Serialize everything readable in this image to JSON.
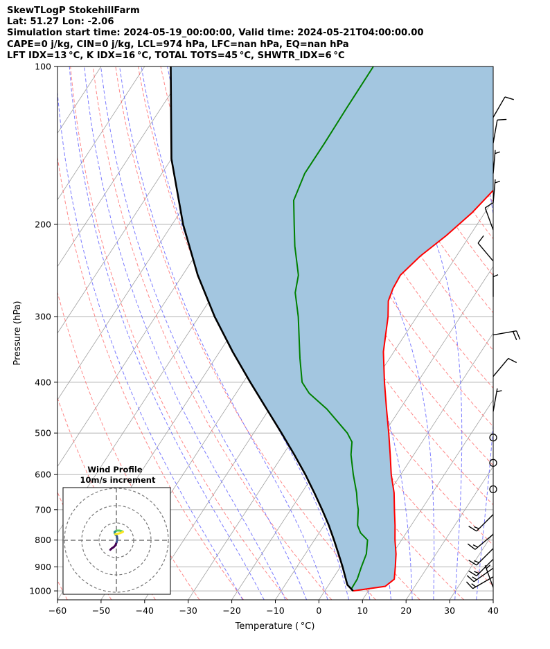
{
  "header": {
    "lines": [
      "SkewTLogP StokehillFarm",
      "Lat: 51.27   Lon: -2.06",
      "Simulation start time: 2024-05-19_00:00:00, Valid time: 2024-05-21T04:00:00.00",
      "CAPE=0 j/kg, CIN=0 j/kg, LCL=974 hPa, LFC=nan hPa, EQ=nan hPa",
      "LFT IDX=13 °C, K IDX=16 °C, TOTAL TOTS=45 °C, SHWTR_IDX=6 °C"
    ]
  },
  "chart_data": {
    "type": "line",
    "subtype": "skew-T log-P diagram",
    "xlabel": "Temperature ( °C)",
    "ylabel": "Pressure (hPa)",
    "xlim": [
      -60,
      40
    ],
    "ylim": [
      1040,
      100
    ],
    "y_scale": "log",
    "x_ticks": [
      "−60",
      "−50",
      "−40",
      "−30",
      "−20",
      "−10",
      "0",
      "10",
      "20",
      "30",
      "40"
    ],
    "x_tick_values": [
      -60,
      -50,
      -40,
      -30,
      -20,
      -10,
      0,
      10,
      20,
      30,
      40
    ],
    "y_ticks": [
      "1000",
      "900",
      "800",
      "700",
      "600",
      "500",
      "400",
      "300",
      "200",
      "100"
    ],
    "y_tick_values": [
      1000,
      900,
      800,
      700,
      600,
      500,
      400,
      300,
      200,
      100
    ],
    "skew_factor": 0.8,
    "grid": true,
    "colors": {
      "temperature": "#ff0000",
      "dewpoint": "#008000",
      "parcel": "#000000",
      "shade": "#a3c6e0",
      "dry_adiabat": "#ff6060",
      "moist_adiabat": "#5a5aff",
      "isotherm": "#a0a0a0"
    },
    "series": [
      {
        "name": "temperature",
        "points": [
          [
            1000,
            6.5
          ],
          [
            980,
            13.2
          ],
          [
            950,
            14.2
          ],
          [
            900,
            12.6
          ],
          [
            850,
            10.8
          ],
          [
            800,
            8.5
          ],
          [
            750,
            6.3
          ],
          [
            700,
            3.8
          ],
          [
            650,
            1.2
          ],
          [
            600,
            -2.2
          ],
          [
            550,
            -5.4
          ],
          [
            500,
            -9.0
          ],
          [
            450,
            -13.1
          ],
          [
            400,
            -17.6
          ],
          [
            350,
            -22.4
          ],
          [
            300,
            -26.6
          ],
          [
            280,
            -28.9
          ],
          [
            265,
            -29.7
          ],
          [
            250,
            -30.0
          ],
          [
            230,
            -28.3
          ],
          [
            210,
            -25.4
          ],
          [
            190,
            -22.9
          ],
          [
            170,
            -21.2
          ],
          [
            150,
            -22.1
          ],
          [
            130,
            -23.9
          ],
          [
            115,
            -25.6
          ],
          [
            100,
            -27.5
          ]
        ]
      },
      {
        "name": "dewpoint",
        "points": [
          [
            990,
            5.8
          ],
          [
            950,
            5.7
          ],
          [
            900,
            4.8
          ],
          [
            850,
            4.0
          ],
          [
            800,
            2.2
          ],
          [
            775,
            -0.5
          ],
          [
            750,
            -2.3
          ],
          [
            700,
            -4.5
          ],
          [
            680,
            -5.7
          ],
          [
            650,
            -7.4
          ],
          [
            600,
            -10.9
          ],
          [
            550,
            -14.4
          ],
          [
            520,
            -16.1
          ],
          [
            500,
            -18.5
          ],
          [
            450,
            -26.8
          ],
          [
            420,
            -33.2
          ],
          [
            400,
            -36.5
          ],
          [
            360,
            -40.6
          ],
          [
            300,
            -47.2
          ],
          [
            270,
            -51.5
          ],
          [
            250,
            -53.4
          ],
          [
            220,
            -58.6
          ],
          [
            200,
            -62.0
          ],
          [
            180,
            -65.7
          ],
          [
            160,
            -67.2
          ],
          [
            140,
            -67.2
          ],
          [
            120,
            -67.4
          ],
          [
            100,
            -67.5
          ]
        ]
      },
      {
        "name": "parcel",
        "points": [
          [
            1000,
            6.5
          ],
          [
            974,
            4.3
          ],
          [
            950,
            3.1
          ],
          [
            900,
            0.5
          ],
          [
            850,
            -2.4
          ],
          [
            800,
            -5.5
          ],
          [
            750,
            -8.9
          ],
          [
            700,
            -12.8
          ],
          [
            650,
            -17.1
          ],
          [
            600,
            -21.9
          ],
          [
            550,
            -27.4
          ],
          [
            500,
            -33.6
          ],
          [
            450,
            -40.6
          ],
          [
            400,
            -48.4
          ],
          [
            350,
            -57.0
          ],
          [
            300,
            -66.4
          ],
          [
            250,
            -76.5
          ],
          [
            200,
            -87.5
          ],
          [
            150,
            -100.0
          ],
          [
            100,
            -114.0
          ]
        ]
      }
    ],
    "wind_barbs": [
      {
        "p": 985,
        "speed_kt": 5,
        "dir": 340
      },
      {
        "p": 940,
        "speed_kt": 15,
        "dir": 240
      },
      {
        "p": 905,
        "speed_kt": 15,
        "dir": 235
      },
      {
        "p": 870,
        "speed_kt": 15,
        "dir": 225
      },
      {
        "p": 830,
        "speed_kt": 15,
        "dir": 225
      },
      {
        "p": 780,
        "speed_kt": 15,
        "dir": 230
      },
      {
        "p": 715,
        "speed_kt": 15,
        "dir": 225
      },
      {
        "p": 640,
        "speed_kt": 0,
        "dir": 0
      },
      {
        "p": 570,
        "speed_kt": 0,
        "dir": 0
      },
      {
        "p": 510,
        "speed_kt": 0,
        "dir": 0
      },
      {
        "p": 455,
        "speed_kt": 5,
        "dir": 10
      },
      {
        "p": 390,
        "speed_kt": 10,
        "dir": 40
      },
      {
        "p": 325,
        "speed_kt": 20,
        "dir": 80
      },
      {
        "p": 275,
        "speed_kt": 5,
        "dir": 0
      },
      {
        "p": 235,
        "speed_kt": 10,
        "dir": 320
      },
      {
        "p": 205,
        "speed_kt": 10,
        "dir": 340
      },
      {
        "p": 182,
        "speed_kt": 5,
        "dir": 5
      },
      {
        "p": 160,
        "speed_kt": 5,
        "dir": 5
      },
      {
        "p": 140,
        "speed_kt": 10,
        "dir": 10
      },
      {
        "p": 125,
        "speed_kt": 10,
        "dir": 30
      }
    ],
    "hodograph": {
      "title": "Wind Profile",
      "subtitle": "10m/s increment",
      "rings_ms": [
        10,
        20,
        30
      ],
      "points": [
        [
          -3.5,
          -5.5
        ],
        [
          -2.8,
          -4.8
        ],
        [
          -1.6,
          -4.0
        ],
        [
          -0.6,
          -3.0
        ],
        [
          0.2,
          -1.0
        ],
        [
          0.5,
          1.0
        ],
        [
          0.3,
          2.4
        ],
        [
          -0.5,
          3.2
        ],
        [
          -0.9,
          4.0
        ],
        [
          -1.0,
          4.8
        ],
        [
          0.2,
          5.6
        ],
        [
          1.8,
          5.6
        ],
        [
          3.2,
          5.2
        ],
        [
          3.8,
          4.9
        ],
        [
          3.1,
          4.5
        ],
        [
          2.1,
          4.1
        ],
        [
          0.9,
          3.8
        ],
        [
          -0.6,
          3.5
        ]
      ],
      "colormap": [
        "#440154",
        "#3b528b",
        "#21918c",
        "#5ec962",
        "#fde725"
      ]
    }
  }
}
